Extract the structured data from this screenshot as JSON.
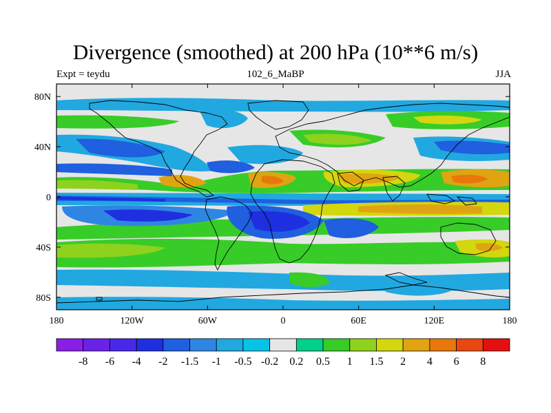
{
  "title": "Divergence (smoothed) at 200 hPa (10**6 m/s)",
  "subtitle_left": "Expt = teydu",
  "subtitle_center": "102_6_MaBP",
  "subtitle_right": "JJA",
  "map": {
    "lon_range": [
      -180,
      180
    ],
    "lat_range": [
      -90,
      90
    ],
    "lat_ticks": [
      {
        "value": 80,
        "label": "80N"
      },
      {
        "value": 40,
        "label": "40N"
      },
      {
        "value": 0,
        "label": "0"
      },
      {
        "value": -40,
        "label": "40S"
      },
      {
        "value": -80,
        "label": "80S"
      }
    ],
    "lon_ticks": [
      {
        "value": -180,
        "label": "180"
      },
      {
        "value": -120,
        "label": "120W"
      },
      {
        "value": -60,
        "label": "60W"
      },
      {
        "value": 0,
        "label": "0"
      },
      {
        "value": 60,
        "label": "60E"
      },
      {
        "value": 120,
        "label": "120E"
      },
      {
        "value": 180,
        "label": "180"
      }
    ]
  },
  "colorbar": {
    "levels": [
      "-8",
      "-6",
      "-4",
      "-2",
      "-1.5",
      "-1",
      "-0.5",
      "-0.2",
      "0.2",
      "0.5",
      "1",
      "1.5",
      "2",
      "4",
      "6",
      "8"
    ],
    "colors": [
      "#8a1ee6",
      "#6a22e6",
      "#4a28e8",
      "#1e2fe0",
      "#1f5fe0",
      "#2e86e2",
      "#21a8e0",
      "#08c3e8",
      "#e6e6e6",
      "#00d08a",
      "#38cc28",
      "#8ed21e",
      "#d4d60e",
      "#e0a412",
      "#e8780c",
      "#e84810",
      "#e41010"
    ]
  }
}
